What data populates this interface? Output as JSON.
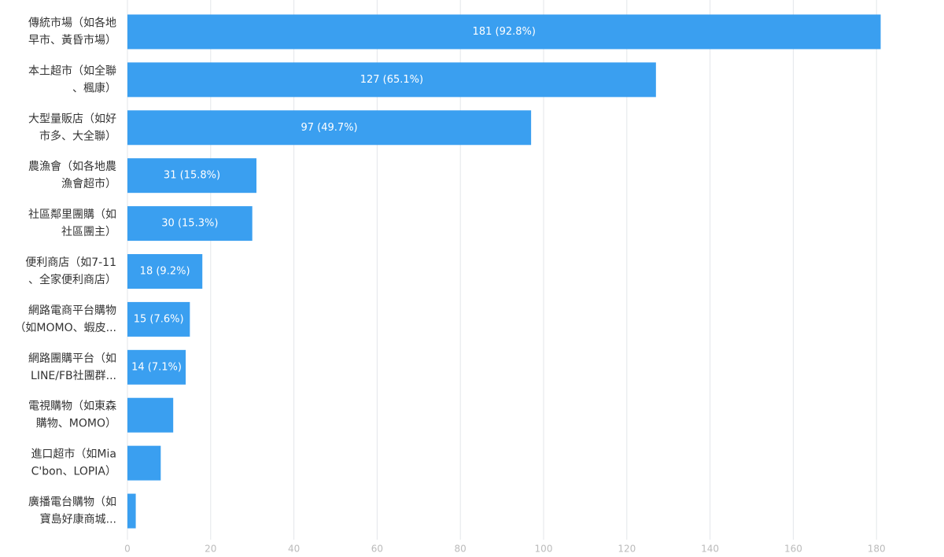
{
  "chart_data": {
    "type": "barh",
    "categories": [
      [
        "傳統市場（如各地",
        "早市、黃昏市場）"
      ],
      [
        "本土超市（如全聯",
        "、楓康）"
      ],
      [
        "大型量販店（如好",
        "市多、大全聯）"
      ],
      [
        "農漁會（如各地農",
        "漁會超市）"
      ],
      [
        "社區鄰里團購（如",
        "社區團主）"
      ],
      [
        "便利商店（如7-11",
        "、全家便利商店）"
      ],
      [
        "網路電商平台購物",
        "（如MOMO、蝦皮..."
      ],
      [
        "網路團購平台（如",
        "LINE/FB社團群..."
      ],
      [
        "電視購物（如東森",
        "購物、MOMO）"
      ],
      [
        "進口超市（如Mia",
        "C'bon、LOPIA）"
      ],
      [
        "廣播電台購物（如",
        "寶島好康商城..."
      ]
    ],
    "values": [
      181,
      127,
      97,
      31,
      30,
      18,
      15,
      14,
      11,
      8,
      2
    ],
    "value_labels": [
      "181 (92.8%)",
      "127 (65.1%)",
      "97 (49.7%)",
      "31 (15.8%)",
      "30 (15.3%)",
      "18 (9.2%)",
      "15 (7.6%)",
      "14 (7.1%)",
      null,
      null,
      null
    ],
    "color": "#3a9ff0",
    "xlim": [
      0,
      188
    ],
    "xticks": [
      0,
      20,
      40,
      60,
      80,
      100,
      120,
      140,
      160,
      180
    ],
    "grid": true
  }
}
